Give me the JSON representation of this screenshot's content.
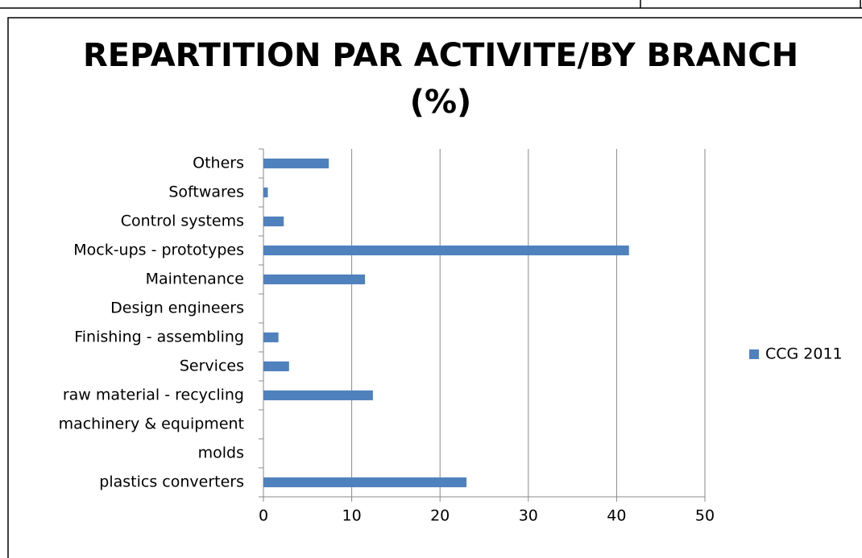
{
  "chart_data": {
    "type": "barh",
    "title": "REPARTITION PAR ACTIVITE/BY BRANCH (%)",
    "categories": [
      "plastics converters",
      "molds",
      "machinery & equipment",
      "raw material - recycling",
      "Services",
      "Finishing - assembling",
      "Design engineers",
      "Maintenance",
      "Mock-ups - prototypes",
      "Control systems",
      "Softwares",
      "Others"
    ],
    "series": [
      {
        "name": "CCG 2011",
        "color": "#4f81bd",
        "values": [
          23,
          0,
          0,
          12.4,
          2.9,
          1.7,
          0,
          11.5,
          41.4,
          2.3,
          0.5,
          7.4
        ]
      }
    ],
    "xlim": [
      0,
      50
    ],
    "xticks": [
      0,
      10,
      20,
      30,
      40,
      50
    ],
    "grid": true,
    "legend": "right"
  }
}
